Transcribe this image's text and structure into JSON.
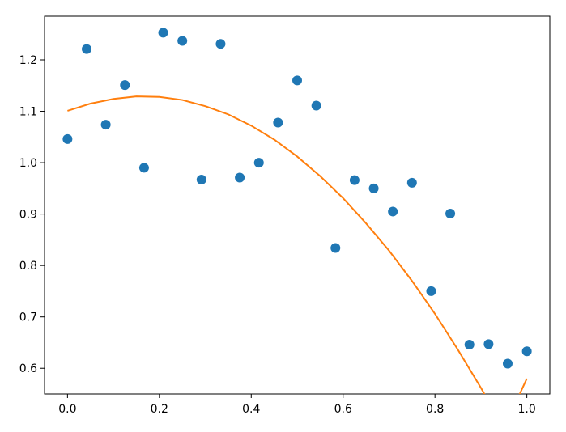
{
  "chart_data": {
    "type": "scatter",
    "title": "",
    "xlabel": "",
    "ylabel": "",
    "xlim": [
      -0.05,
      1.05
    ],
    "ylim": [
      0.55,
      1.285
    ],
    "x_ticks": [
      0.0,
      0.2,
      0.4,
      0.6,
      0.8,
      1.0
    ],
    "x_tick_labels": [
      "0.0",
      "0.2",
      "0.4",
      "0.6",
      "0.8",
      "1.0"
    ],
    "y_ticks": [
      0.6,
      0.7,
      0.8,
      0.9,
      1.0,
      1.1,
      1.2
    ],
    "y_tick_labels": [
      "0.6",
      "0.7",
      "0.8",
      "0.9",
      "1.0",
      "1.1",
      "1.2"
    ],
    "grid": false,
    "legend": "none",
    "series": [
      {
        "type": "scatter",
        "color": "#1f77b4",
        "points": [
          [
            0.0,
            1.046
          ],
          [
            0.0417,
            1.221
          ],
          [
            0.0833,
            1.074
          ],
          [
            0.125,
            1.151
          ],
          [
            0.1667,
            0.99
          ],
          [
            0.2083,
            1.253
          ],
          [
            0.25,
            1.237
          ],
          [
            0.2917,
            0.967
          ],
          [
            0.3333,
            1.231
          ],
          [
            0.375,
            0.971
          ],
          [
            0.4167,
            1.0
          ],
          [
            0.4583,
            1.078
          ],
          [
            0.5,
            1.16
          ],
          [
            0.5417,
            1.111
          ],
          [
            0.5833,
            0.834
          ],
          [
            0.625,
            0.966
          ],
          [
            0.6667,
            0.95
          ],
          [
            0.7083,
            0.905
          ],
          [
            0.75,
            0.961
          ],
          [
            0.7917,
            0.75
          ],
          [
            0.8333,
            0.901
          ],
          [
            0.875,
            0.646
          ],
          [
            0.9167,
            0.647
          ],
          [
            0.9583,
            0.609
          ],
          [
            1.0,
            0.633
          ]
        ]
      },
      {
        "type": "line",
        "color": "#ff7f0e",
        "points": [
          [
            0.0,
            1.101
          ],
          [
            0.05,
            1.115
          ],
          [
            0.1,
            1.124
          ],
          [
            0.15,
            1.129
          ],
          [
            0.2,
            1.128
          ],
          [
            0.25,
            1.122
          ],
          [
            0.3,
            1.11
          ],
          [
            0.35,
            1.094
          ],
          [
            0.4,
            1.072
          ],
          [
            0.45,
            1.045
          ],
          [
            0.5,
            1.012
          ],
          [
            0.55,
            0.974
          ],
          [
            0.6,
            0.931
          ],
          [
            0.65,
            0.882
          ],
          [
            0.7,
            0.829
          ],
          [
            0.75,
            0.77
          ],
          [
            0.8,
            0.706
          ],
          [
            0.85,
            0.636
          ],
          [
            0.9,
            0.562
          ],
          [
            0.95,
            0.483
          ],
          [
            1.0,
            0.58
          ]
        ]
      }
    ]
  }
}
